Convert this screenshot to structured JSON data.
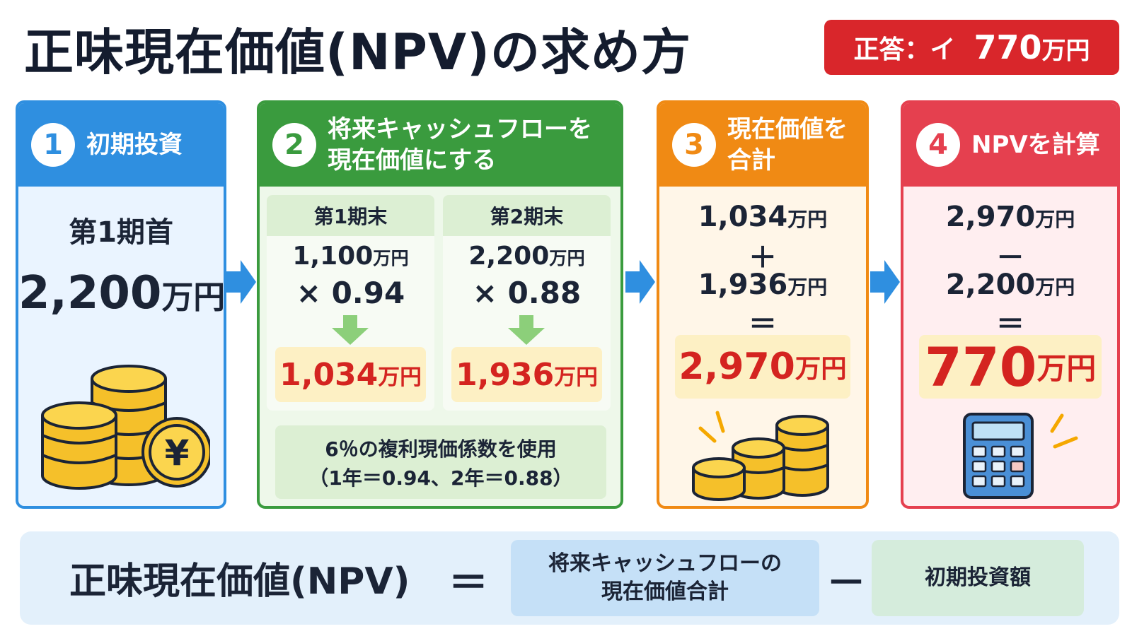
{
  "title": "正味現在価値(NPV)の求め方",
  "answer": {
    "label": "正答：イ",
    "value": "770",
    "unit": "万円"
  },
  "steps": [
    {
      "num": "1",
      "title": "初期投資",
      "period": "第1期首",
      "amount": "2,200",
      "unit": "万円",
      "icon": "yen-coins-icon"
    },
    {
      "num": "2",
      "title_lines": [
        "将来キャッシュフローを",
        "現在価値にする"
      ],
      "periods": [
        {
          "label": "第1期末",
          "cash": "1,100",
          "unit": "万円",
          "factor": "× 0.94",
          "result": "1,034"
        },
        {
          "label": "第2期末",
          "cash": "2,200",
          "unit": "万円",
          "factor": "× 0.88",
          "result": "1,936"
        }
      ],
      "note_lines": [
        "6％の複利現価係数を使用",
        "（1年＝0.94、2年＝0.88）"
      ]
    },
    {
      "num": "3",
      "title_lines": [
        "現在価値を",
        "合計"
      ],
      "a": "1,034",
      "op": "＋",
      "b": "1,936",
      "eq": "＝",
      "result": "2,970",
      "unit": "万円",
      "icon": "coin-stacks-icon"
    },
    {
      "num": "4",
      "title": "NPVを計算",
      "a": "2,970",
      "op": "－",
      "b": "2,200",
      "eq": "＝",
      "result": "770",
      "unit": "万円",
      "icon": "calculator-icon"
    }
  ],
  "formula": {
    "lhs": "正味現在価値(NPV)",
    "eq": "＝",
    "term1_lines": [
      "将来キャッシュフローの",
      "現在価値合計"
    ],
    "minus": "－",
    "term2": "初期投資額"
  },
  "colors": {
    "blue": "#2f8fe0",
    "green": "#3a9b3e",
    "orange": "#f08a14",
    "red": "#e5404f",
    "answer_red": "#d9262b",
    "highlight_text": "#d42420"
  }
}
